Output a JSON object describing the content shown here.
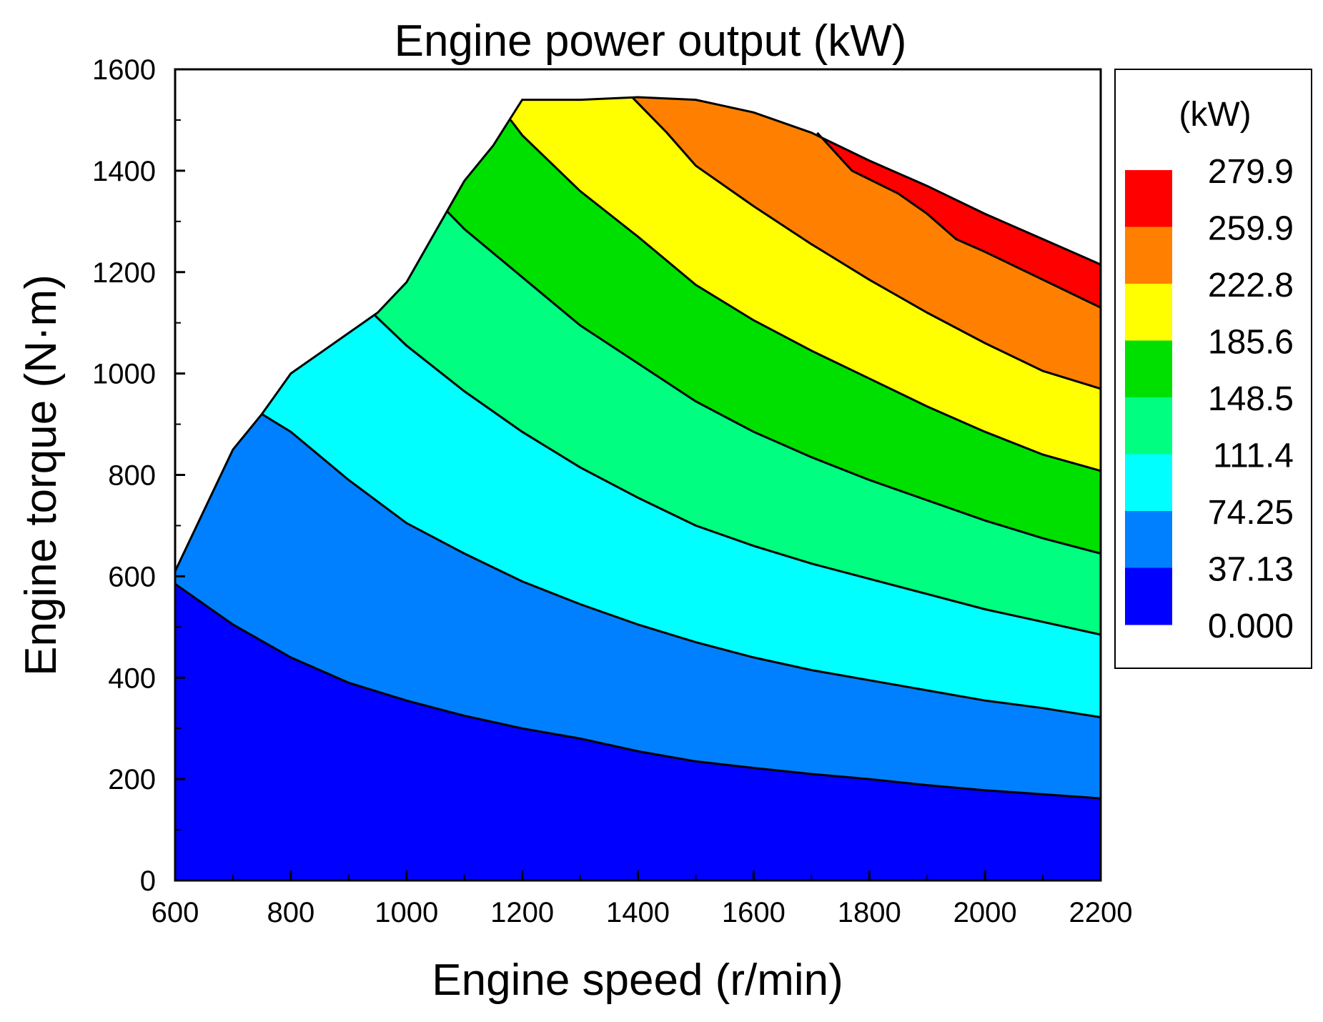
{
  "chart_data": {
    "type": "contour-filled",
    "title": "Engine power output (kW)",
    "xlabel": "Engine speed (r/min)",
    "ylabel": "Engine torque (N·m)",
    "xlim": [
      600,
      2200
    ],
    "ylim": [
      0,
      1600
    ],
    "xticks": [
      600,
      800,
      1000,
      1200,
      1400,
      1600,
      1800,
      2000,
      2200
    ],
    "yticks": [
      0,
      200,
      400,
      600,
      800,
      1000,
      1200,
      1400,
      1600
    ],
    "grid": false,
    "legend": {
      "position": "right",
      "unit_label": "(kW)",
      "labels": [
        "279.9",
        "259.9",
        "222.8",
        "185.6",
        "148.5",
        "111.4",
        "74.25",
        "37.13",
        "0.000"
      ],
      "colors": [
        "#ff0000",
        "#ff8000",
        "#ffff00",
        "#00e000",
        "#00ff80",
        "#00ffff",
        "#0080ff",
        "#0000ff"
      ]
    },
    "boundary": [
      [
        600,
        610
      ],
      [
        700,
        850
      ],
      [
        750,
        920
      ],
      [
        800,
        1000
      ],
      [
        850,
        1040
      ],
      [
        900,
        1080
      ],
      [
        950,
        1120
      ],
      [
        1000,
        1180
      ],
      [
        1050,
        1280
      ],
      [
        1100,
        1380
      ],
      [
        1150,
        1450
      ],
      [
        1200,
        1540
      ],
      [
        1300,
        1540
      ],
      [
        1400,
        1545
      ],
      [
        1500,
        1540
      ],
      [
        1600,
        1515
      ],
      [
        1700,
        1475
      ],
      [
        1800,
        1420
      ],
      [
        1900,
        1370
      ],
      [
        2000,
        1315
      ],
      [
        2100,
        1265
      ],
      [
        2200,
        1215
      ]
    ],
    "levels": [
      {
        "value": 0.0,
        "color": "#0000ff",
        "points": [
          [
            600,
            585
          ],
          [
            700,
            505
          ],
          [
            800,
            440
          ],
          [
            900,
            390
          ],
          [
            1000,
            355
          ],
          [
            1100,
            325
          ],
          [
            1200,
            300
          ],
          [
            1300,
            280
          ],
          [
            1400,
            255
          ],
          [
            1500,
            235
          ],
          [
            1600,
            222
          ],
          [
            1700,
            210
          ],
          [
            1800,
            200
          ],
          [
            1900,
            188
          ],
          [
            2000,
            178
          ],
          [
            2100,
            170
          ],
          [
            2200,
            162
          ]
        ]
      },
      {
        "value": 37.13,
        "color": "#0080ff",
        "points": [
          [
            750,
            920
          ],
          [
            800,
            885
          ],
          [
            900,
            790
          ],
          [
            1000,
            705
          ],
          [
            1100,
            645
          ],
          [
            1200,
            590
          ],
          [
            1300,
            545
          ],
          [
            1400,
            505
          ],
          [
            1500,
            470
          ],
          [
            1600,
            440
          ],
          [
            1700,
            415
          ],
          [
            1800,
            395
          ],
          [
            1900,
            375
          ],
          [
            2000,
            355
          ],
          [
            2100,
            340
          ],
          [
            2200,
            322
          ]
        ]
      },
      {
        "value": 74.25,
        "color": "#00ffff",
        "points": [
          [
            945,
            1115
          ],
          [
            1000,
            1055
          ],
          [
            1100,
            965
          ],
          [
            1200,
            885
          ],
          [
            1300,
            815
          ],
          [
            1400,
            755
          ],
          [
            1500,
            700
          ],
          [
            1600,
            660
          ],
          [
            1700,
            625
          ],
          [
            1800,
            595
          ],
          [
            1900,
            565
          ],
          [
            2000,
            535
          ],
          [
            2100,
            510
          ],
          [
            2200,
            485
          ]
        ]
      },
      {
        "value": 111.4,
        "color": "#00ff80",
        "points": [
          [
            1070,
            1320
          ],
          [
            1100,
            1285
          ],
          [
            1200,
            1190
          ],
          [
            1300,
            1095
          ],
          [
            1400,
            1020
          ],
          [
            1500,
            945
          ],
          [
            1600,
            885
          ],
          [
            1700,
            835
          ],
          [
            1800,
            790
          ],
          [
            1900,
            750
          ],
          [
            2000,
            710
          ],
          [
            2100,
            675
          ],
          [
            2200,
            645
          ]
        ]
      },
      {
        "value": 148.5,
        "color": "#00e000",
        "points": [
          [
            1180,
            1500
          ],
          [
            1200,
            1470
          ],
          [
            1300,
            1360
          ],
          [
            1400,
            1270
          ],
          [
            1500,
            1175
          ],
          [
            1600,
            1105
          ],
          [
            1700,
            1045
          ],
          [
            1800,
            990
          ],
          [
            1900,
            935
          ],
          [
            2000,
            885
          ],
          [
            2100,
            840
          ],
          [
            2200,
            808
          ]
        ]
      },
      {
        "value": 185.6,
        "color": "#ffff00",
        "points": [
          [
            1390,
            1545
          ],
          [
            1450,
            1475
          ],
          [
            1500,
            1410
          ],
          [
            1600,
            1330
          ],
          [
            1700,
            1255
          ],
          [
            1800,
            1185
          ],
          [
            1900,
            1120
          ],
          [
            2000,
            1060
          ],
          [
            2100,
            1005
          ],
          [
            2200,
            970
          ]
        ]
      },
      {
        "value": 222.8,
        "color": "#ff8000",
        "points": [
          [
            1710,
            1475
          ],
          [
            1770,
            1400
          ],
          [
            1850,
            1355
          ],
          [
            1900,
            1315
          ],
          [
            1950,
            1265
          ],
          [
            2000,
            1240
          ],
          [
            2100,
            1185
          ],
          [
            2200,
            1130
          ]
        ]
      },
      {
        "value": 259.9,
        "color": "#ff0000",
        "points": []
      }
    ]
  }
}
